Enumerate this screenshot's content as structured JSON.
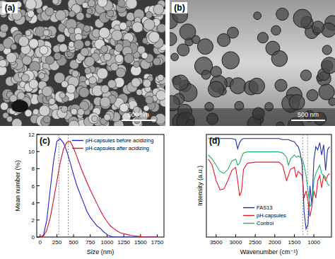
{
  "images": [
    {
      "label": "(a)",
      "scale_bar": "500 nm"
    },
    {
      "label": "(b)",
      "scale_bar": "500 nm"
    }
  ],
  "chart_data": [
    {
      "type": "line",
      "title": "(c)",
      "x_label": "Size (nm)",
      "y_label": "Mean number (%)",
      "x": [
        0,
        50,
        100,
        150,
        200,
        250,
        300,
        350,
        400,
        450,
        500,
        550,
        600,
        650,
        700,
        750,
        800,
        850,
        900,
        950,
        1000,
        1050,
        1100,
        1150,
        1200,
        1250,
        1300,
        1350,
        1400,
        1450,
        1500,
        1550,
        1600,
        1650,
        1700,
        1750
      ],
      "series": [
        {
          "name": "pH-capsules before acidizing",
          "color": "#1f1fd0",
          "values": [
            0,
            0.2,
            2,
            5.5,
            8.8,
            11.2,
            11.5,
            11,
            10,
            8.7,
            7.3,
            6,
            5,
            4,
            3,
            2.3,
            1.8,
            1.3,
            1,
            0.6,
            0.3,
            0.1,
            0,
            0,
            0,
            0,
            0,
            0,
            0,
            0,
            0,
            0,
            0,
            0,
            0,
            0
          ]
        },
        {
          "name": "pH-capsules after acidizing",
          "color": "#d0102a",
          "values": [
            0,
            0.1,
            0.8,
            2.2,
            4.3,
            6.5,
            8.7,
            10.3,
            11.1,
            11.2,
            10.4,
            9.4,
            8.3,
            7.3,
            6.4,
            5.5,
            4.7,
            3.9,
            3.1,
            2.4,
            1.8,
            1.3,
            1,
            0.7,
            0.5,
            0.4,
            0.3,
            0.2,
            0.15,
            0.1,
            0.05,
            0,
            0,
            0,
            0,
            0
          ]
        }
      ],
      "xlim": [
        -50,
        1850
      ],
      "xticks": [
        0,
        250,
        500,
        750,
        1000,
        1250,
        1500,
        1750
      ],
      "ylim": [
        0,
        12
      ],
      "yticks": [
        0,
        2,
        4,
        6,
        8,
        10,
        12
      ],
      "legend": "upper right",
      "vlines": [
        280,
        420
      ]
    },
    {
      "type": "line",
      "title": "(d)",
      "x_label": "Wavenumber (cm⁻¹)",
      "y_label": "Intensity (a.u.)",
      "x": [
        3700,
        3600,
        3500,
        3400,
        3300,
        3200,
        3100,
        3000,
        2950,
        2900,
        2850,
        2800,
        2700,
        2500,
        2300,
        2100,
        1900,
        1800,
        1700,
        1650,
        1600,
        1500,
        1450,
        1400,
        1350,
        1300,
        1250,
        1200,
        1150,
        1100,
        1050,
        1000,
        950,
        900,
        850,
        800,
        750,
        700,
        650,
        600
      ],
      "series": [
        {
          "name": "FAS13",
          "color": "#1c2fa0",
          "values": [
            0.96,
            0.96,
            0.96,
            0.96,
            0.96,
            0.96,
            0.96,
            0.95,
            0.86,
            0.92,
            0.95,
            0.96,
            0.96,
            0.96,
            0.96,
            0.96,
            0.96,
            0.95,
            0.95,
            0.95,
            0.94,
            0.93,
            0.9,
            0.88,
            0.82,
            0.7,
            0.25,
            0.08,
            0.12,
            0.5,
            0.3,
            0.75,
            0.88,
            0.85,
            0.92,
            0.8,
            0.9,
            0.65,
            0.85,
            0.88
          ]
        },
        {
          "name": "pH-capsules",
          "color": "#e0202a",
          "values": [
            0.76,
            0.7,
            0.55,
            0.46,
            0.47,
            0.55,
            0.65,
            0.68,
            0.55,
            0.4,
            0.45,
            0.66,
            0.72,
            0.73,
            0.73,
            0.73,
            0.73,
            0.7,
            0.55,
            0.6,
            0.66,
            0.68,
            0.58,
            0.64,
            0.62,
            0.6,
            0.38,
            0.45,
            0.35,
            0.2,
            0.3,
            0.45,
            0.38,
            0.55,
            0.6,
            0.48,
            0.6,
            0.55,
            0.6,
            0.62
          ]
        },
        {
          "name": "Control",
          "color": "#20b070",
          "values": [
            0.8,
            0.76,
            0.7,
            0.64,
            0.62,
            0.66,
            0.74,
            0.76,
            0.7,
            0.72,
            0.78,
            0.82,
            0.83,
            0.83,
            0.83,
            0.83,
            0.83,
            0.82,
            0.78,
            0.7,
            0.76,
            0.8,
            0.78,
            0.79,
            0.78,
            0.76,
            0.7,
            0.6,
            0.45,
            0.3,
            0.32,
            0.55,
            0.62,
            0.66,
            0.7,
            0.62,
            0.6,
            0.58,
            0.52,
            0.5
          ]
        }
      ],
      "xlim": [
        3750,
        550
      ],
      "xticks": [
        3500,
        3000,
        2500,
        2000,
        1500,
        1000
      ],
      "ylim": [
        0,
        1
      ],
      "tick_labels": "x",
      "legend": "lower left",
      "vlines": [
        1280,
        1160
      ]
    }
  ]
}
